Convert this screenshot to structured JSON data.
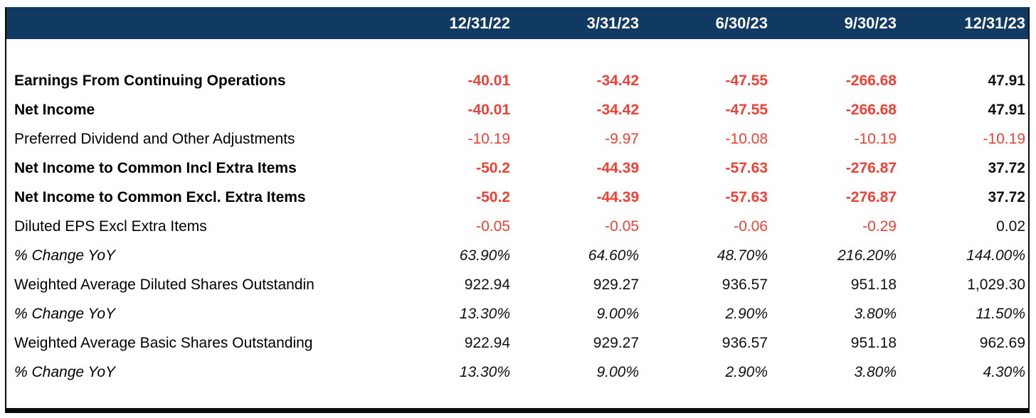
{
  "colors": {
    "header_bg": "#113a62",
    "header_text": "#ffffff",
    "negative": "#ee4237",
    "text": "#111111",
    "border": "#0b0b0b"
  },
  "table": {
    "columns": [
      "12/31/22",
      "3/31/23",
      "6/30/23",
      "9/30/23",
      "12/31/23"
    ],
    "rows": [
      {
        "label": "Earnings From Continuing Operations",
        "style": "bold",
        "values": [
          "-40.01",
          "-34.42",
          "-47.55",
          "-266.68",
          "47.91"
        ]
      },
      {
        "label": "Net Income",
        "style": "bold",
        "values": [
          "-40.01",
          "-34.42",
          "-47.55",
          "-266.68",
          "47.91"
        ]
      },
      {
        "label": "Preferred Dividend and Other Adjustments",
        "style": "normal",
        "values": [
          "-10.19",
          "-9.97",
          "-10.08",
          "-10.19",
          "-10.19"
        ]
      },
      {
        "label": "Net Income to Common Incl Extra Items",
        "style": "bold",
        "values": [
          "-50.2",
          "-44.39",
          "-57.63",
          "-276.87",
          "37.72"
        ]
      },
      {
        "label": "Net Income to Common Excl. Extra Items",
        "style": "bold",
        "values": [
          "-50.2",
          "-44.39",
          "-57.63",
          "-276.87",
          "37.72"
        ]
      },
      {
        "label": "Diluted EPS Excl Extra Items",
        "style": "normal",
        "values": [
          "-0.05",
          "-0.05",
          "-0.06",
          "-0.29",
          "0.02"
        ]
      },
      {
        "label": "% Change YoY",
        "style": "italic",
        "values": [
          "63.90%",
          "64.60%",
          "48.70%",
          "216.20%",
          "144.00%"
        ]
      },
      {
        "label": "Weighted Average Diluted Shares Outstandin",
        "style": "normal",
        "values": [
          "922.94",
          "929.27",
          "936.57",
          "951.18",
          "1,029.30"
        ]
      },
      {
        "label": "% Change YoY",
        "style": "italic",
        "values": [
          "13.30%",
          "9.00%",
          "2.90%",
          "3.80%",
          "11.50%"
        ]
      },
      {
        "label": "Weighted Average Basic Shares Outstanding",
        "style": "normal",
        "values": [
          "922.94",
          "929.27",
          "936.57",
          "951.18",
          "962.69"
        ]
      },
      {
        "label": "% Change YoY",
        "style": "italic",
        "values": [
          "13.30%",
          "9.00%",
          "2.90%",
          "3.80%",
          "4.30%"
        ]
      }
    ]
  },
  "chart_data": {
    "type": "table",
    "columns": [
      "",
      "12/31/22",
      "3/31/23",
      "6/30/23",
      "9/30/23",
      "12/31/23"
    ],
    "rows": [
      [
        "Earnings From Continuing Operations",
        -40.01,
        -34.42,
        -47.55,
        -266.68,
        47.91
      ],
      [
        "Net Income",
        -40.01,
        -34.42,
        -47.55,
        -266.68,
        47.91
      ],
      [
        "Preferred Dividend and Other Adjustments",
        -10.19,
        -9.97,
        -10.08,
        -10.19,
        -10.19
      ],
      [
        "Net Income to Common Incl Extra Items",
        -50.2,
        -44.39,
        -57.63,
        -276.87,
        37.72
      ],
      [
        "Net Income to Common Excl. Extra Items",
        -50.2,
        -44.39,
        -57.63,
        -276.87,
        37.72
      ],
      [
        "Diluted EPS Excl Extra Items",
        -0.05,
        -0.05,
        -0.06,
        -0.29,
        0.02
      ],
      [
        "% Change YoY",
        "63.90%",
        "64.60%",
        "48.70%",
        "216.20%",
        "144.00%"
      ],
      [
        "Weighted Average Diluted Shares Outstandin",
        922.94,
        929.27,
        936.57,
        951.18,
        1029.3
      ],
      [
        "% Change YoY",
        "13.30%",
        "9.00%",
        "2.90%",
        "3.80%",
        "11.50%"
      ],
      [
        "Weighted Average Basic Shares Outstanding",
        922.94,
        929.27,
        936.57,
        951.18,
        962.69
      ],
      [
        "% Change YoY",
        "13.30%",
        "9.00%",
        "2.90%",
        "3.80%",
        "4.30%"
      ]
    ]
  }
}
